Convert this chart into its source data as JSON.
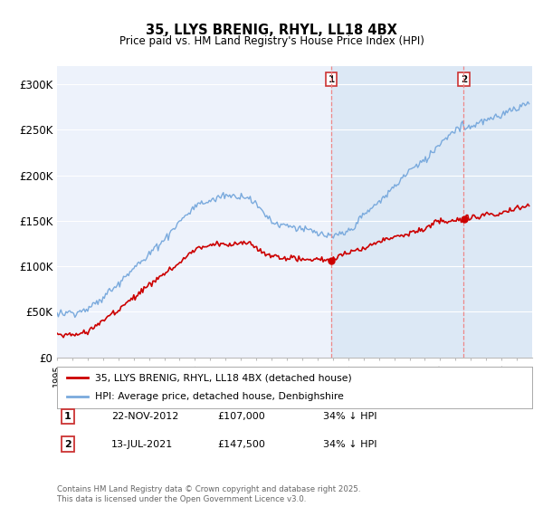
{
  "title": "35, LLYS BRENIG, RHYL, LL18 4BX",
  "subtitle": "Price paid vs. HM Land Registry's House Price Index (HPI)",
  "ylim": [
    0,
    320000
  ],
  "yticks": [
    0,
    50000,
    100000,
    150000,
    200000,
    250000,
    300000
  ],
  "ytick_labels": [
    "£0",
    "£50K",
    "£100K",
    "£150K",
    "£200K",
    "£250K",
    "£300K"
  ],
  "background_color": "#ffffff",
  "plot_bg_color": "#edf2fb",
  "grid_color": "#ffffff",
  "line1_color": "#cc0000",
  "line2_color": "#7aaadd",
  "marker1_date": 2012.9,
  "marker2_date": 2021.54,
  "vline_color": "#ee8888",
  "span_color": "#dce8f5",
  "legend_line1": "35, LLYS BRENIG, RHYL, LL18 4BX (detached house)",
  "legend_line2": "HPI: Average price, detached house, Denbighshire",
  "table_data": [
    [
      "1",
      "22-NOV-2012",
      "£107,000",
      "34% ↓ HPI"
    ],
    [
      "2",
      "13-JUL-2021",
      "£147,500",
      "34% ↓ HPI"
    ]
  ],
  "footer": "Contains HM Land Registry data © Crown copyright and database right 2025.\nThis data is licensed under the Open Government Licence v3.0.",
  "xmin": 1995,
  "xmax": 2026
}
